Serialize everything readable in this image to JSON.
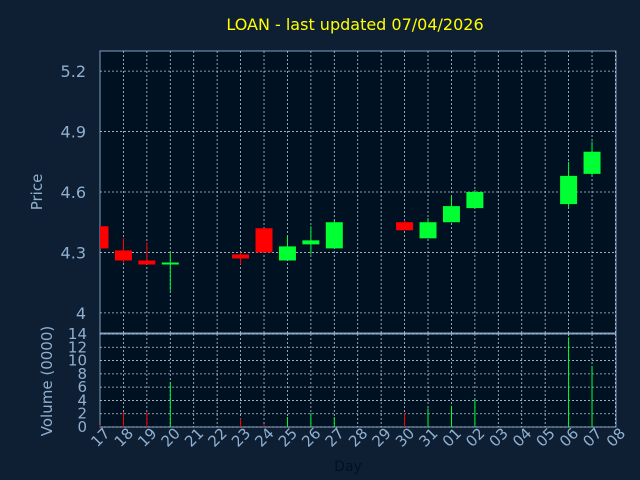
{
  "chart_data": {
    "type": "candlestick",
    "title": "LOAN - last updated 07/04/2026",
    "xlabel": "Day",
    "ylabel_price": "Price",
    "ylabel_volume": "Volume (0000)",
    "price_ylim": [
      3.9,
      5.3
    ],
    "price_ticks": [
      "4",
      "4.3",
      "4.6",
      "4.9",
      "5.2"
    ],
    "volume_ylim": [
      0,
      14
    ],
    "volume_ticks": [
      "0",
      "2",
      "4",
      "6",
      "8",
      "10",
      "12",
      "14"
    ],
    "x_ticks": [
      "17",
      "18",
      "19",
      "20",
      "21",
      "22",
      "23",
      "24",
      "25",
      "26",
      "27",
      "28",
      "29",
      "30",
      "31",
      "01",
      "02",
      "03",
      "04",
      "05",
      "06",
      "07",
      "08"
    ],
    "grid": true,
    "colors": {
      "up": "#00ff33",
      "down": "#ff0000",
      "title": "#ffff00",
      "background": "#0f1f33",
      "plot": "#001122",
      "axis_text": "#8fb0d0"
    },
    "candles": [
      {
        "day": "17",
        "open": 4.43,
        "high": 4.43,
        "low": 4.32,
        "close": 4.32
      },
      {
        "day": "18",
        "open": 4.31,
        "high": 4.37,
        "low": 4.25,
        "close": 4.26
      },
      {
        "day": "19",
        "open": 4.26,
        "high": 4.35,
        "low": 4.24,
        "close": 4.24
      },
      {
        "day": "20",
        "open": 4.24,
        "high": 4.3,
        "low": 4.11,
        "close": 4.25
      },
      {
        "day": "23",
        "open": 4.29,
        "high": 4.3,
        "low": 4.24,
        "close": 4.27
      },
      {
        "day": "24",
        "open": 4.42,
        "high": 4.42,
        "low": 4.3,
        "close": 4.3
      },
      {
        "day": "25",
        "open": 4.26,
        "high": 4.38,
        "low": 4.26,
        "close": 4.33
      },
      {
        "day": "26",
        "open": 4.34,
        "high": 4.43,
        "low": 4.29,
        "close": 4.36
      },
      {
        "day": "27",
        "open": 4.32,
        "high": 4.46,
        "low": 4.32,
        "close": 4.45
      },
      {
        "day": "30",
        "open": 4.45,
        "high": 4.46,
        "low": 4.41,
        "close": 4.41
      },
      {
        "day": "31",
        "open": 4.37,
        "high": 4.47,
        "low": 4.37,
        "close": 4.45
      },
      {
        "day": "01",
        "open": 4.45,
        "high": 4.58,
        "low": 4.45,
        "close": 4.53
      },
      {
        "day": "02",
        "open": 4.52,
        "high": 4.61,
        "low": 4.52,
        "close": 4.6
      },
      {
        "day": "06",
        "open": 4.54,
        "high": 4.75,
        "low": 4.52,
        "close": 4.68
      },
      {
        "day": "07",
        "open": 4.69,
        "high": 4.85,
        "low": 4.68,
        "close": 4.8
      }
    ],
    "volume": [
      {
        "day": "17",
        "value": 0.3
      },
      {
        "day": "18",
        "value": 2.3
      },
      {
        "day": "19",
        "value": 2.2
      },
      {
        "day": "20",
        "value": 6.8
      },
      {
        "day": "23",
        "value": 1.3
      },
      {
        "day": "24",
        "value": 0.4
      },
      {
        "day": "25",
        "value": 1.5
      },
      {
        "day": "26",
        "value": 2.1
      },
      {
        "day": "27",
        "value": 1.5
      },
      {
        "day": "30",
        "value": 2.1
      },
      {
        "day": "31",
        "value": 2.8
      },
      {
        "day": "01",
        "value": 3.2
      },
      {
        "day": "02",
        "value": 4.2
      },
      {
        "day": "06",
        "value": 13.5
      },
      {
        "day": "07",
        "value": 9.2
      }
    ]
  }
}
